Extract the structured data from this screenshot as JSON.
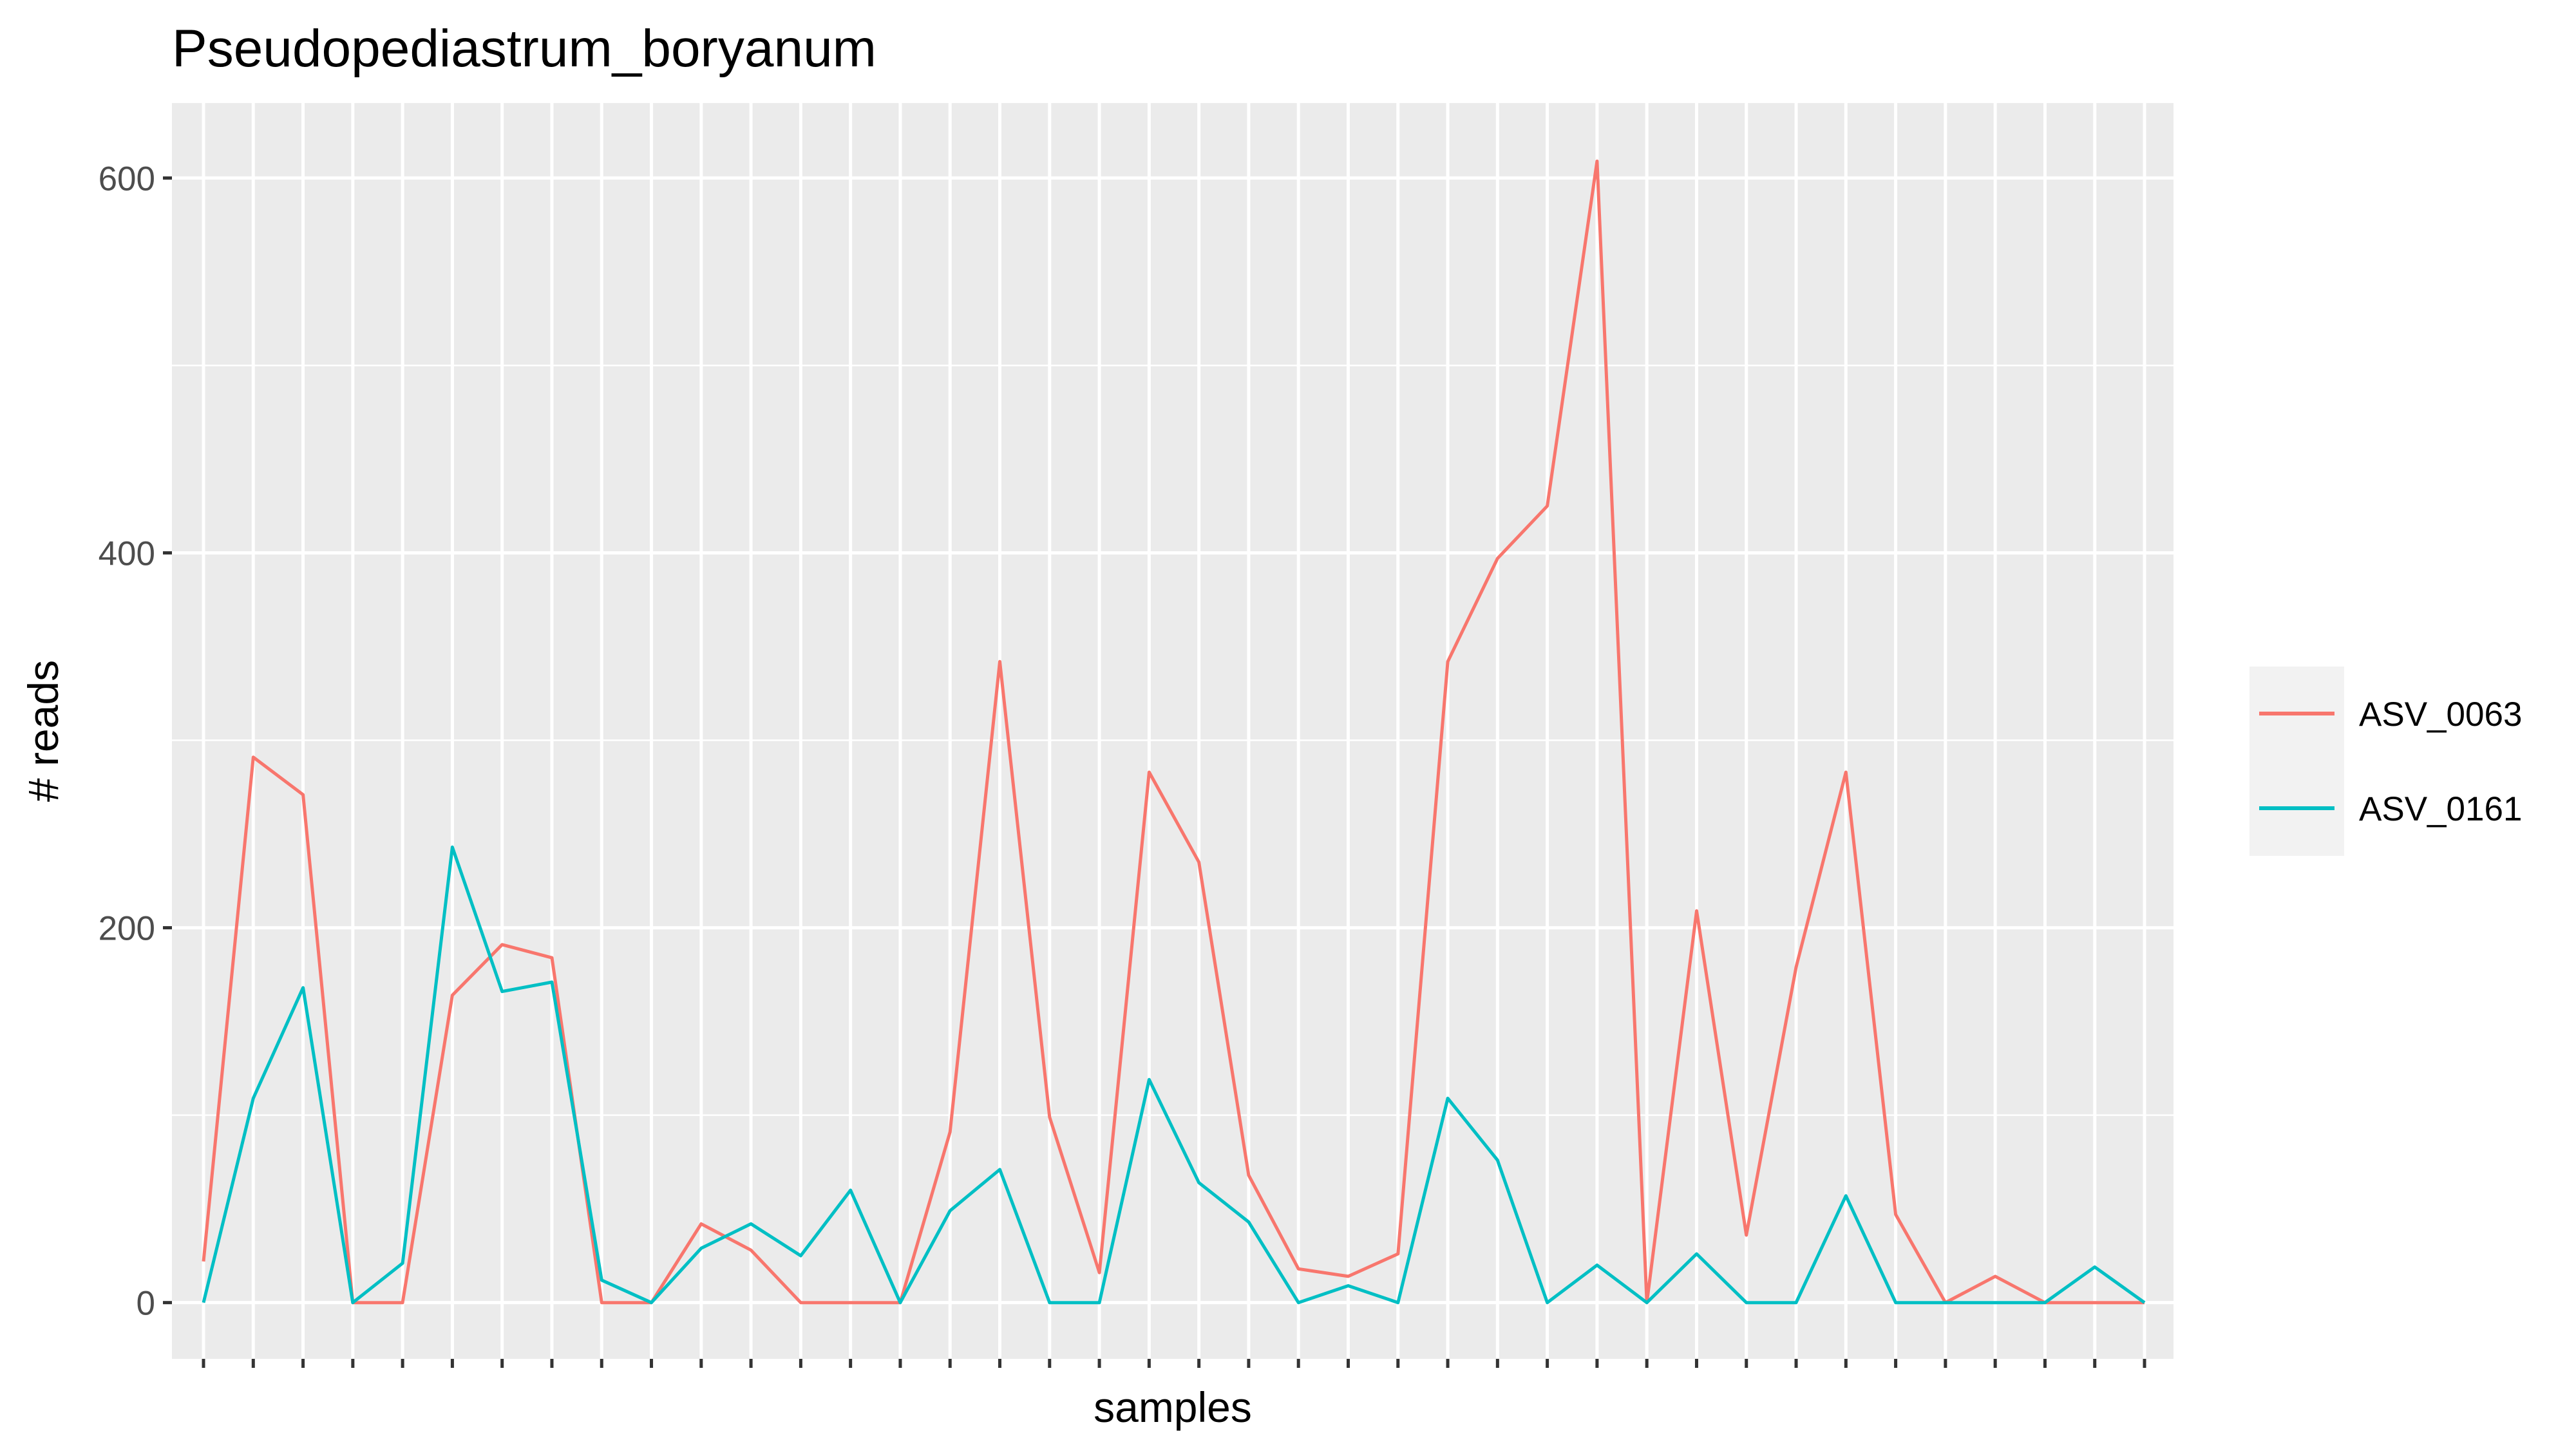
{
  "chart_data": {
    "type": "line",
    "title": "Pseudopediastrum_boryanum",
    "xlabel": "samples",
    "ylabel": "# reads",
    "x_tick_labels": "none",
    "n_samples": 40,
    "ylim": [
      -30,
      640
    ],
    "yticks": [
      0,
      200,
      400,
      600
    ],
    "grid": true,
    "legend": "right",
    "panel_background": "#ebebeb",
    "grid_color": "#ffffff",
    "series": [
      {
        "name": "ASV_0063",
        "color": "#f8766d",
        "values": [
          22,
          291,
          271,
          0,
          0,
          164,
          191,
          184,
          0,
          0,
          42,
          28,
          0,
          0,
          0,
          91,
          342,
          99,
          16,
          283,
          235,
          68,
          18,
          14,
          26,
          342,
          397,
          425,
          609,
          0,
          209,
          36,
          179,
          283,
          47,
          0,
          14,
          0,
          0,
          0
        ]
      },
      {
        "name": "ASV_0161",
        "color": "#00bfc4",
        "values": [
          0,
          109,
          168,
          0,
          21,
          243,
          166,
          171,
          12,
          0,
          29,
          42,
          25,
          60,
          0,
          49,
          71,
          0,
          0,
          119,
          64,
          43,
          0,
          9,
          0,
          109,
          76,
          0,
          20,
          0,
          26,
          0,
          0,
          57,
          0,
          0,
          0,
          0,
          19,
          0
        ]
      }
    ]
  }
}
